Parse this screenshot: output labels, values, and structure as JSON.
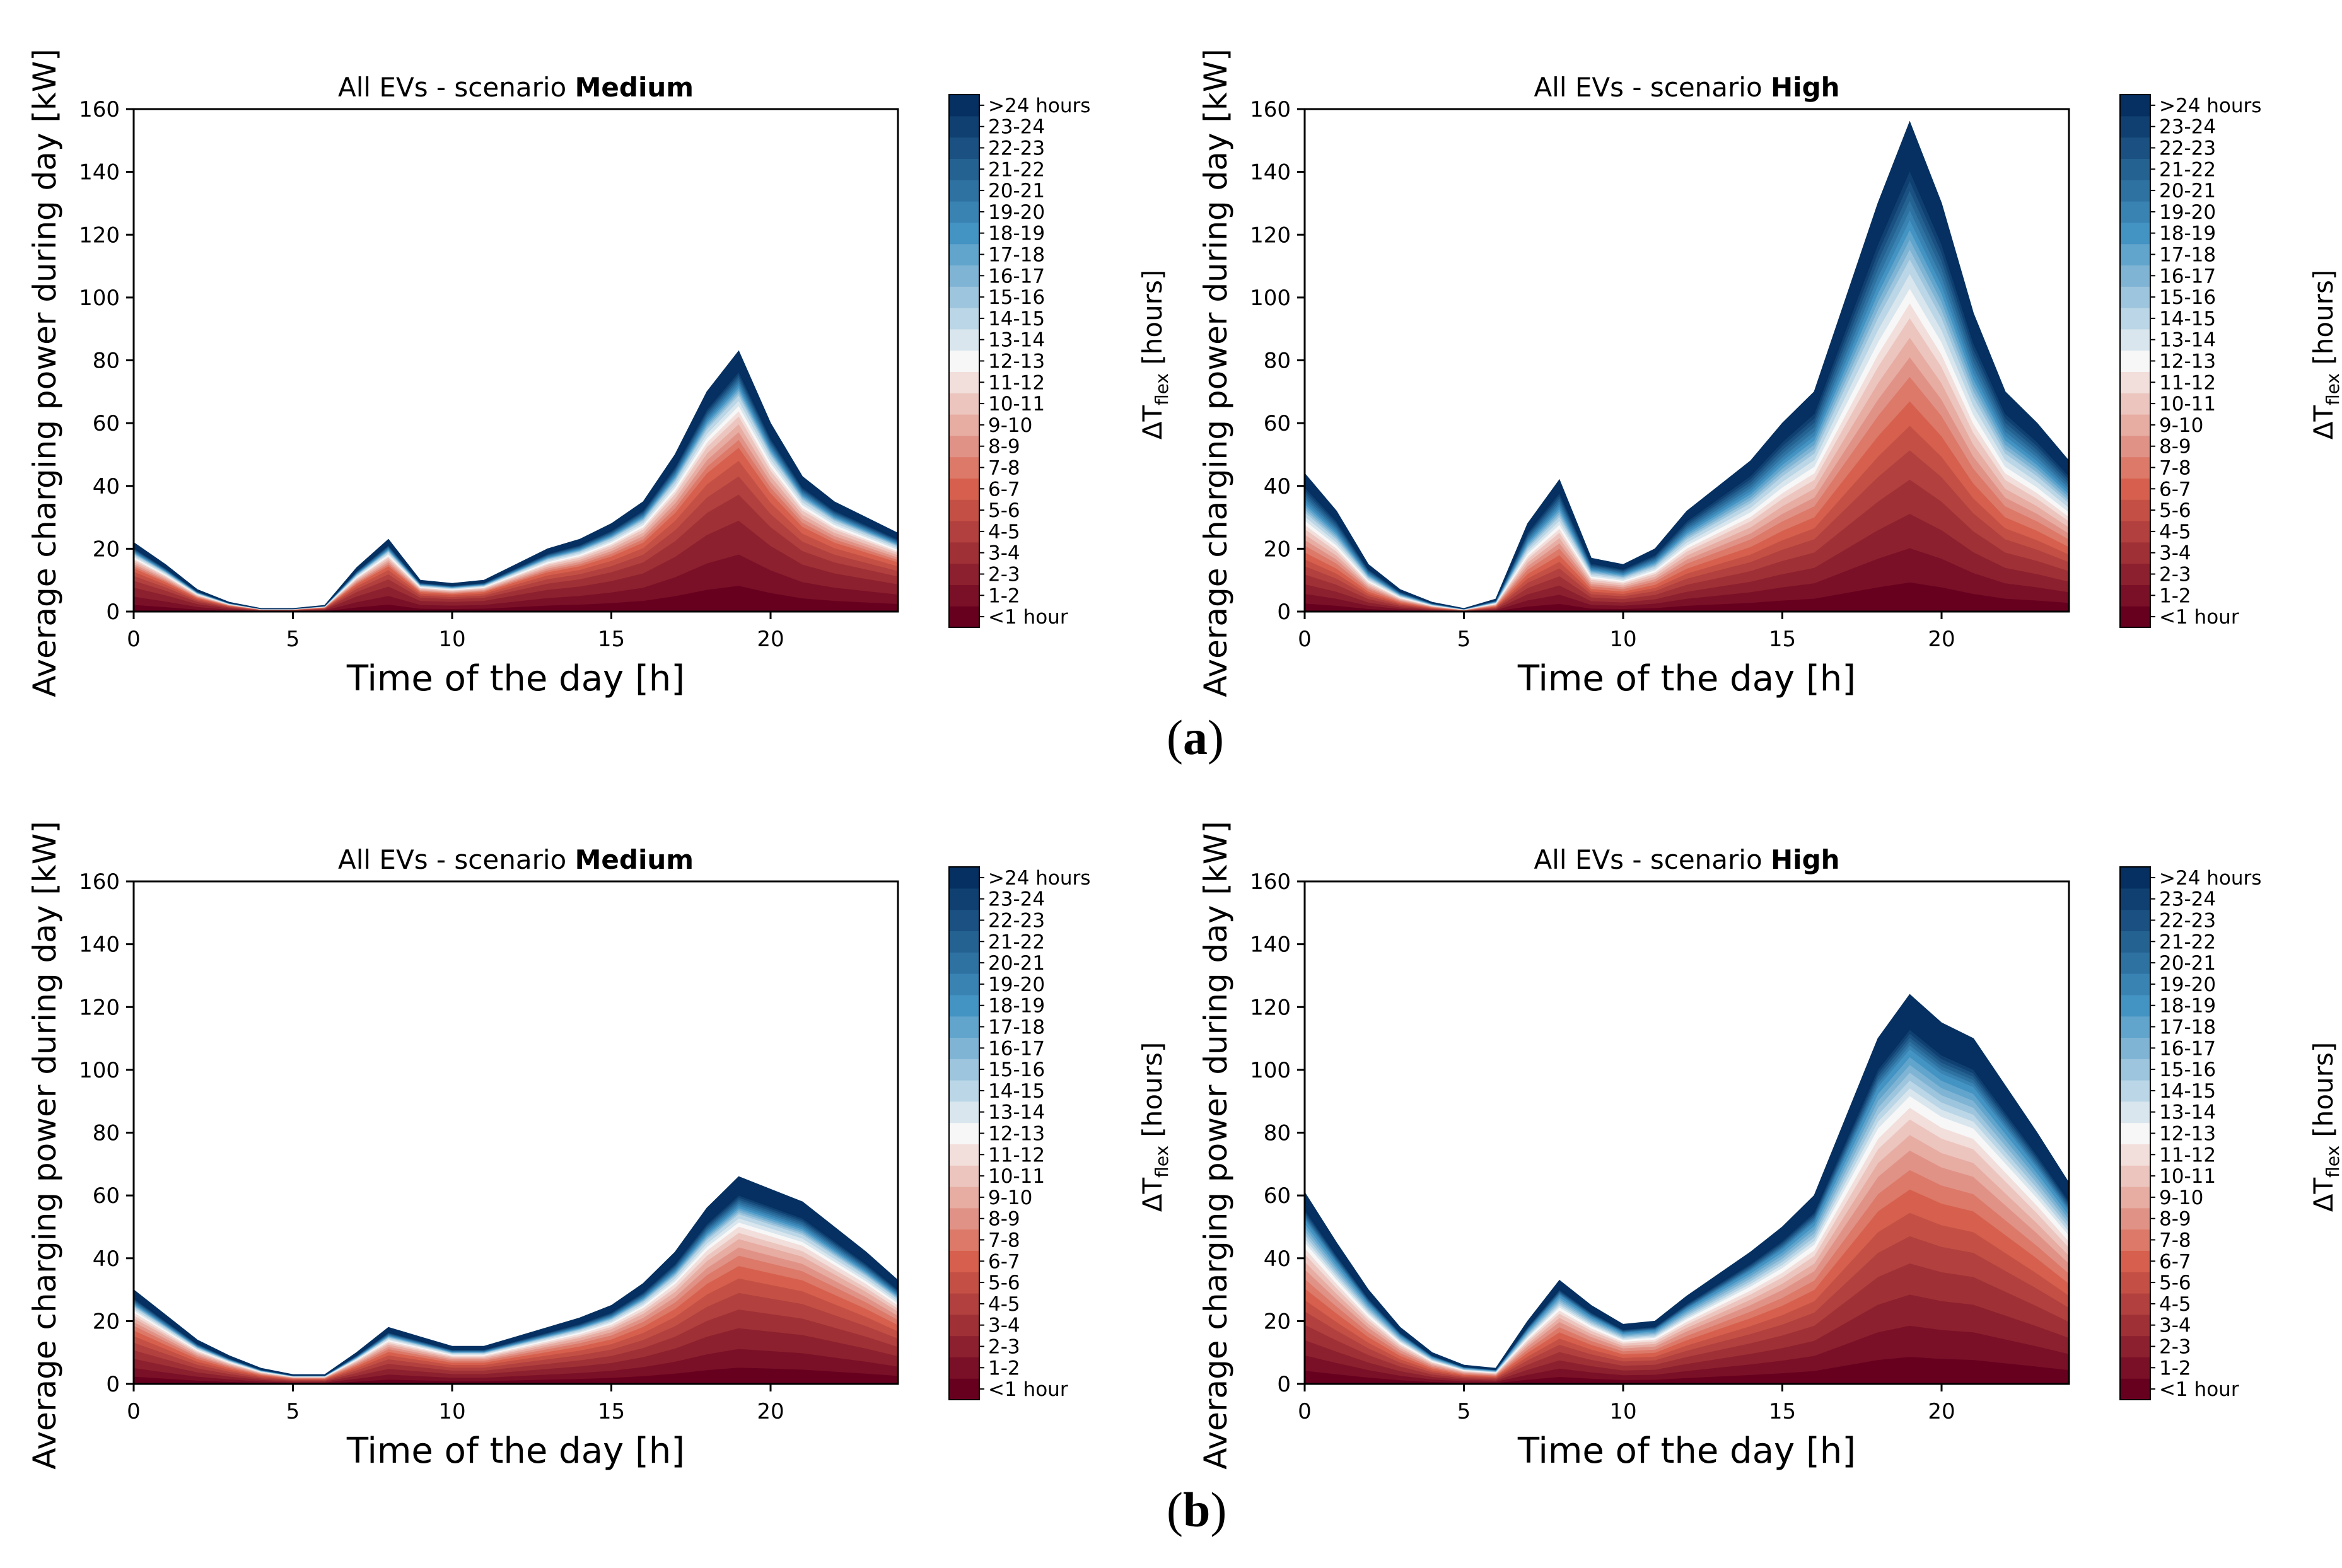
{
  "figure": {
    "panel_a": "a",
    "panel_b": "b"
  },
  "colors": {
    "low": "#67001f",
    "mid_low": "#d6604d",
    "mid": "#f7f7f7",
    "mid_high": "#4393c3",
    "high": "#053061",
    "frame": "#000000"
  },
  "chart_data": [
    {
      "type": "area",
      "panel": "a",
      "title_prefix": "All EVs - scenario ",
      "title_bold": "Medium",
      "xlabel": "Time of the day [h]",
      "ylabel": "Average charging power during day [kW]",
      "colorbar_label_prefix": "ΔT",
      "colorbar_label_sub": "flex",
      "colorbar_label_suffix": " [hours]",
      "xlim": [
        0,
        24
      ],
      "ylim": [
        0,
        160
      ],
      "xticks": [
        0,
        5,
        10,
        15,
        20
      ],
      "yticks": [
        0,
        20,
        40,
        60,
        80,
        100,
        120,
        140,
        160
      ],
      "categories": [
        "<1 hour",
        "1-2",
        "2-3",
        "3-4",
        "4-5",
        "5-6",
        "6-7",
        "7-8",
        "8-9",
        "9-10",
        "10-11",
        "11-12",
        "12-13",
        "13-14",
        "14-15",
        "15-16",
        "16-17",
        "17-18",
        "18-19",
        "19-20",
        "20-21",
        "21-22",
        "22-23",
        "23-24",
        ">24 hours"
      ],
      "x": [
        0,
        1,
        2,
        3,
        4,
        5,
        6,
        7,
        8,
        9,
        10,
        11,
        12,
        13,
        14,
        15,
        16,
        17,
        18,
        19,
        20,
        21,
        22,
        23,
        24
      ],
      "total": [
        22,
        15,
        7,
        3,
        1,
        1,
        2,
        14,
        23,
        10,
        9,
        10,
        15,
        20,
        23,
        28,
        35,
        50,
        70,
        83,
        60,
        43,
        35,
        30,
        25
      ],
      "cumulative_shares": [
        0.1,
        0.22,
        0.35,
        0.45,
        0.52,
        0.58,
        0.63,
        0.66,
        0.69,
        0.72,
        0.75,
        0.77,
        0.79,
        0.81,
        0.83,
        0.84,
        0.85,
        0.86,
        0.87,
        0.88,
        0.89,
        0.9,
        0.91,
        0.92,
        1.0
      ]
    },
    {
      "type": "area",
      "panel": "a",
      "title_prefix": "All EVs - scenario ",
      "title_bold": "High",
      "xlabel": "Time of the day [h]",
      "ylabel": "Average charging power during day [kW]",
      "colorbar_label_prefix": "ΔT",
      "colorbar_label_sub": "flex",
      "colorbar_label_suffix": " [hours]",
      "xlim": [
        0,
        24
      ],
      "ylim": [
        0,
        160
      ],
      "xticks": [
        0,
        5,
        10,
        15,
        20
      ],
      "yticks": [
        0,
        20,
        40,
        60,
        80,
        100,
        120,
        140,
        160
      ],
      "categories": [
        "<1 hour",
        "1-2",
        "2-3",
        "3-4",
        "4-5",
        "5-6",
        "6-7",
        "7-8",
        "8-9",
        "9-10",
        "10-11",
        "11-12",
        "12-13",
        "13-14",
        "14-15",
        "15-16",
        "16-17",
        "17-18",
        "18-19",
        "19-20",
        "20-21",
        "21-22",
        "22-23",
        "23-24",
        ">24 hours"
      ],
      "x": [
        0,
        1,
        2,
        3,
        4,
        5,
        6,
        7,
        8,
        9,
        10,
        11,
        12,
        13,
        14,
        15,
        16,
        17,
        18,
        19,
        20,
        21,
        22,
        23,
        24
      ],
      "total": [
        44,
        32,
        15,
        7,
        3,
        1,
        4,
        28,
        42,
        17,
        15,
        20,
        32,
        40,
        48,
        60,
        70,
        100,
        130,
        156,
        130,
        95,
        70,
        60,
        48
      ],
      "cumulative_shares": [
        0.06,
        0.13,
        0.2,
        0.27,
        0.33,
        0.38,
        0.43,
        0.48,
        0.52,
        0.56,
        0.6,
        0.63,
        0.66,
        0.69,
        0.72,
        0.74,
        0.76,
        0.78,
        0.8,
        0.82,
        0.84,
        0.86,
        0.88,
        0.9,
        1.0
      ]
    },
    {
      "type": "area",
      "panel": "b",
      "title_prefix": "All EVs - scenario ",
      "title_bold": "Medium",
      "xlabel": "Time of the day [h]",
      "ylabel": "Average charging power during day [kW]",
      "colorbar_label_prefix": "ΔT",
      "colorbar_label_sub": "flex",
      "colorbar_label_suffix": " [hours]",
      "xlim": [
        0,
        24
      ],
      "ylim": [
        0,
        160
      ],
      "xticks": [
        0,
        5,
        10,
        15,
        20
      ],
      "yticks": [
        0,
        20,
        40,
        60,
        80,
        100,
        120,
        140,
        160
      ],
      "categories": [
        "<1 hour",
        "1-2",
        "2-3",
        "3-4",
        "4-5",
        "5-6",
        "6-7",
        "7-8",
        "8-9",
        "9-10",
        "10-11",
        "11-12",
        "12-13",
        "13-14",
        "14-15",
        "15-16",
        "16-17",
        "17-18",
        "18-19",
        "19-20",
        "20-21",
        "21-22",
        "22-23",
        "23-24",
        ">24 hours"
      ],
      "x": [
        0,
        1,
        2,
        3,
        4,
        5,
        6,
        7,
        8,
        9,
        10,
        11,
        12,
        13,
        14,
        15,
        16,
        17,
        18,
        19,
        20,
        21,
        22,
        23,
        24
      ],
      "total": [
        30,
        22,
        14,
        9,
        5,
        3,
        3,
        10,
        18,
        15,
        12,
        12,
        15,
        18,
        21,
        25,
        32,
        42,
        56,
        66,
        62,
        58,
        50,
        42,
        33
      ],
      "cumulative_shares": [
        0.08,
        0.17,
        0.27,
        0.36,
        0.44,
        0.51,
        0.57,
        0.62,
        0.66,
        0.7,
        0.73,
        0.76,
        0.78,
        0.8,
        0.82,
        0.83,
        0.84,
        0.85,
        0.86,
        0.87,
        0.88,
        0.89,
        0.9,
        0.91,
        1.0
      ]
    },
    {
      "type": "area",
      "panel": "b",
      "title_prefix": "All EVs - scenario ",
      "title_bold": "High",
      "xlabel": "Time of the day [h]",
      "ylabel": "Average charging power during day [kW]",
      "colorbar_label_prefix": "ΔT",
      "colorbar_label_sub": "flex",
      "colorbar_label_suffix": " [hours]",
      "xlim": [
        0,
        24
      ],
      "ylim": [
        0,
        160
      ],
      "xticks": [
        0,
        5,
        10,
        15,
        20
      ],
      "yticks": [
        0,
        20,
        40,
        60,
        80,
        100,
        120,
        140,
        160
      ],
      "categories": [
        "<1 hour",
        "1-2",
        "2-3",
        "3-4",
        "4-5",
        "5-6",
        "6-7",
        "7-8",
        "8-9",
        "9-10",
        "10-11",
        "11-12",
        "12-13",
        "13-14",
        "14-15",
        "15-16",
        "16-17",
        "17-18",
        "18-19",
        "19-20",
        "20-21",
        "21-22",
        "22-23",
        "23-24",
        ">24 hours"
      ],
      "x": [
        0,
        1,
        2,
        3,
        4,
        5,
        6,
        7,
        8,
        9,
        10,
        11,
        12,
        13,
        14,
        15,
        16,
        17,
        18,
        19,
        20,
        21,
        22,
        23,
        24
      ],
      "total": [
        61,
        45,
        30,
        18,
        10,
        6,
        5,
        20,
        33,
        25,
        19,
        20,
        28,
        35,
        42,
        50,
        60,
        85,
        110,
        124,
        115,
        110,
        95,
        80,
        64
      ],
      "cumulative_shares": [
        0.07,
        0.15,
        0.23,
        0.31,
        0.38,
        0.44,
        0.5,
        0.55,
        0.6,
        0.64,
        0.68,
        0.71,
        0.74,
        0.76,
        0.78,
        0.8,
        0.82,
        0.84,
        0.86,
        0.87,
        0.88,
        0.89,
        0.9,
        0.91,
        1.0
      ]
    }
  ]
}
